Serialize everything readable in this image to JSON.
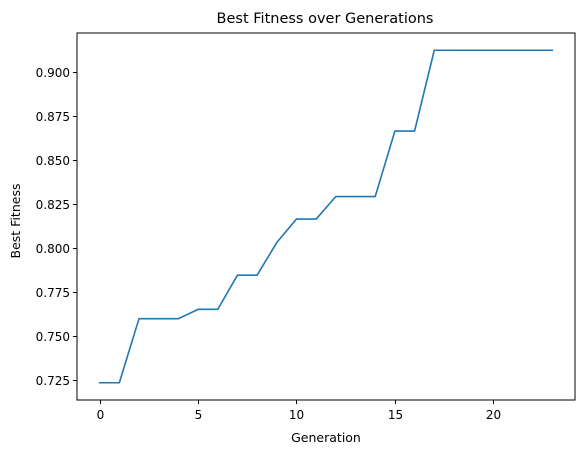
{
  "chart_data": {
    "type": "line",
    "title": "Best Fitness over Generations",
    "xlabel": "Generation",
    "ylabel": "Best Fitness",
    "xlim": [
      -1.15,
      24.15
    ],
    "ylim": [
      0.7135,
      0.922
    ],
    "xticks": [
      0,
      5,
      10,
      15,
      20
    ],
    "xtick_labels": [
      "0",
      "5",
      "10",
      "15",
      "20"
    ],
    "yticks": [
      0.725,
      0.75,
      0.775,
      0.8,
      0.825,
      0.85,
      0.875,
      0.9
    ],
    "ytick_labels": [
      "0.725",
      "0.750",
      "0.775",
      "0.800",
      "0.825",
      "0.850",
      "0.875",
      "0.900"
    ],
    "grid": false,
    "series": [
      {
        "color": "#1f77b4",
        "x": [
          0,
          1,
          2,
          3,
          4,
          5,
          6,
          7,
          8,
          9,
          10,
          11,
          12,
          13,
          14,
          15,
          16,
          17,
          18,
          19,
          20,
          21,
          22,
          23
        ],
        "y": [
          0.7233,
          0.7233,
          0.7597,
          0.7597,
          0.7597,
          0.765,
          0.765,
          0.7844,
          0.7844,
          0.803,
          0.8163,
          0.8163,
          0.8291,
          0.8291,
          0.8291,
          0.8663,
          0.8663,
          0.9122,
          0.9122,
          0.9122,
          0.9122,
          0.9122,
          0.9122,
          0.9122
        ]
      }
    ]
  }
}
